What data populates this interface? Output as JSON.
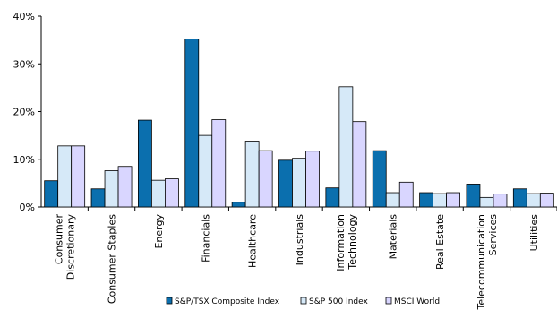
{
  "chart_data": {
    "type": "bar",
    "title": "",
    "xlabel": "",
    "ylabel": "",
    "ylim": [
      0,
      40
    ],
    "yticks": [
      {
        "value": 0,
        "label": "0%"
      },
      {
        "value": 10,
        "label": "10%"
      },
      {
        "value": 20,
        "label": "20%"
      },
      {
        "value": 30,
        "label": "30%"
      },
      {
        "value": 40,
        "label": "40%"
      }
    ],
    "grid": false,
    "legend_position": "bottom",
    "categories": [
      [
        "Consumer",
        "Discretionary"
      ],
      [
        "Consumer Staples"
      ],
      [
        "Energy"
      ],
      [
        "Financials"
      ],
      [
        "Healthcare"
      ],
      [
        "Industrials"
      ],
      [
        "Information",
        "Technology"
      ],
      [
        "Materials"
      ],
      [
        "Real Estate"
      ],
      [
        "Telecommunication",
        "Services"
      ],
      [
        "Utilities"
      ]
    ],
    "series": [
      {
        "name": "S&P/TSX Composite Index",
        "color": "#0b6fae",
        "values": [
          5.5,
          3.8,
          18.2,
          35.2,
          1.0,
          9.8,
          4.0,
          11.8,
          3.0,
          4.8,
          3.8
        ]
      },
      {
        "name": "S&P 500 Index",
        "color": "#d6e9f8",
        "values": [
          12.8,
          7.6,
          5.6,
          15.0,
          13.8,
          10.2,
          25.2,
          3.0,
          2.8,
          2.0,
          2.8
        ]
      },
      {
        "name": "MSCI World",
        "color": "#d9d6ff",
        "values": [
          12.8,
          8.5,
          5.9,
          18.3,
          11.8,
          11.7,
          17.9,
          5.2,
          3.0,
          2.7,
          2.9
        ]
      }
    ]
  }
}
